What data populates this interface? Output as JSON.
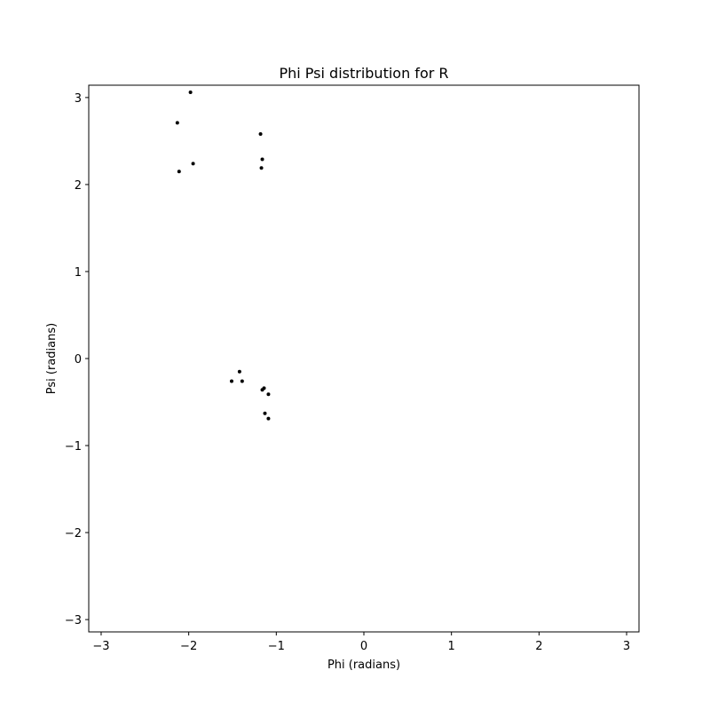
{
  "chart_data": {
    "type": "scatter",
    "title": "Phi Psi distribution for R",
    "xlabel": "Phi (radians)",
    "ylabel": "Psi (radians)",
    "xlim": [
      -3.1416,
      3.1416
    ],
    "ylim": [
      -3.1416,
      3.1416
    ],
    "xticks": [
      -3,
      -2,
      -1,
      0,
      1,
      2,
      3
    ],
    "yticks": [
      -3,
      -2,
      -1,
      0,
      1,
      2,
      3
    ],
    "xtick_labels": [
      "−3",
      "−2",
      "−1",
      "0",
      "1",
      "2",
      "3"
    ],
    "ytick_labels": [
      "−3",
      "−2",
      "−1",
      "0",
      "1",
      "2",
      "3"
    ],
    "grid": false,
    "marker_color": "#000000",
    "points": [
      {
        "x": -1.98,
        "y": 3.06
      },
      {
        "x": -2.13,
        "y": 2.71
      },
      {
        "x": -1.95,
        "y": 2.24
      },
      {
        "x": -2.11,
        "y": 2.15
      },
      {
        "x": -1.18,
        "y": 2.58
      },
      {
        "x": -1.16,
        "y": 2.29
      },
      {
        "x": -1.17,
        "y": 2.19
      },
      {
        "x": -1.42,
        "y": -0.15
      },
      {
        "x": -1.51,
        "y": -0.26
      },
      {
        "x": -1.39,
        "y": -0.26
      },
      {
        "x": -1.14,
        "y": -0.34
      },
      {
        "x": -1.16,
        "y": -0.36
      },
      {
        "x": -1.09,
        "y": -0.41
      },
      {
        "x": -1.13,
        "y": -0.63
      },
      {
        "x": -1.09,
        "y": -0.69
      }
    ]
  }
}
